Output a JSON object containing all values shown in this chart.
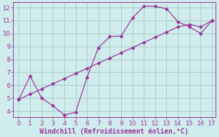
{
  "xlabel": "Windchill (Refroidissement éolien,°C)",
  "line1_x": [
    0,
    1,
    2,
    3,
    4,
    5,
    6,
    7,
    8,
    9,
    10,
    11,
    12,
    13,
    14,
    15,
    16,
    17
  ],
  "line1_y": [
    4.9,
    6.7,
    5.0,
    4.4,
    3.7,
    3.9,
    6.6,
    8.9,
    9.75,
    9.8,
    11.2,
    12.1,
    12.1,
    11.9,
    10.9,
    10.5,
    10.0,
    11.0
  ],
  "line2_x": [
    0,
    1,
    2,
    3,
    4,
    5,
    6,
    7,
    8,
    9,
    10,
    11,
    12,
    13,
    14,
    15,
    16,
    17
  ],
  "line2_y": [
    4.9,
    5.3,
    5.7,
    6.1,
    6.5,
    6.9,
    7.3,
    7.7,
    8.1,
    8.5,
    8.9,
    9.3,
    9.7,
    10.1,
    10.5,
    10.7,
    10.5,
    11.0
  ],
  "line_color": "#993399",
  "bg_color": "#d0ecec",
  "grid_color": "#a8cccc",
  "axis_color": "#993399",
  "xlim_min": -0.5,
  "xlim_max": 17.3,
  "ylim_min": 3.5,
  "ylim_max": 12.4,
  "xticks": [
    0,
    1,
    2,
    3,
    4,
    5,
    6,
    7,
    8,
    9,
    10,
    11,
    12,
    13,
    14,
    15,
    16,
    17
  ],
  "yticks": [
    4,
    5,
    6,
    7,
    8,
    9,
    10,
    11,
    12
  ],
  "xlabel_fontsize": 7,
  "tick_fontsize": 6.5
}
